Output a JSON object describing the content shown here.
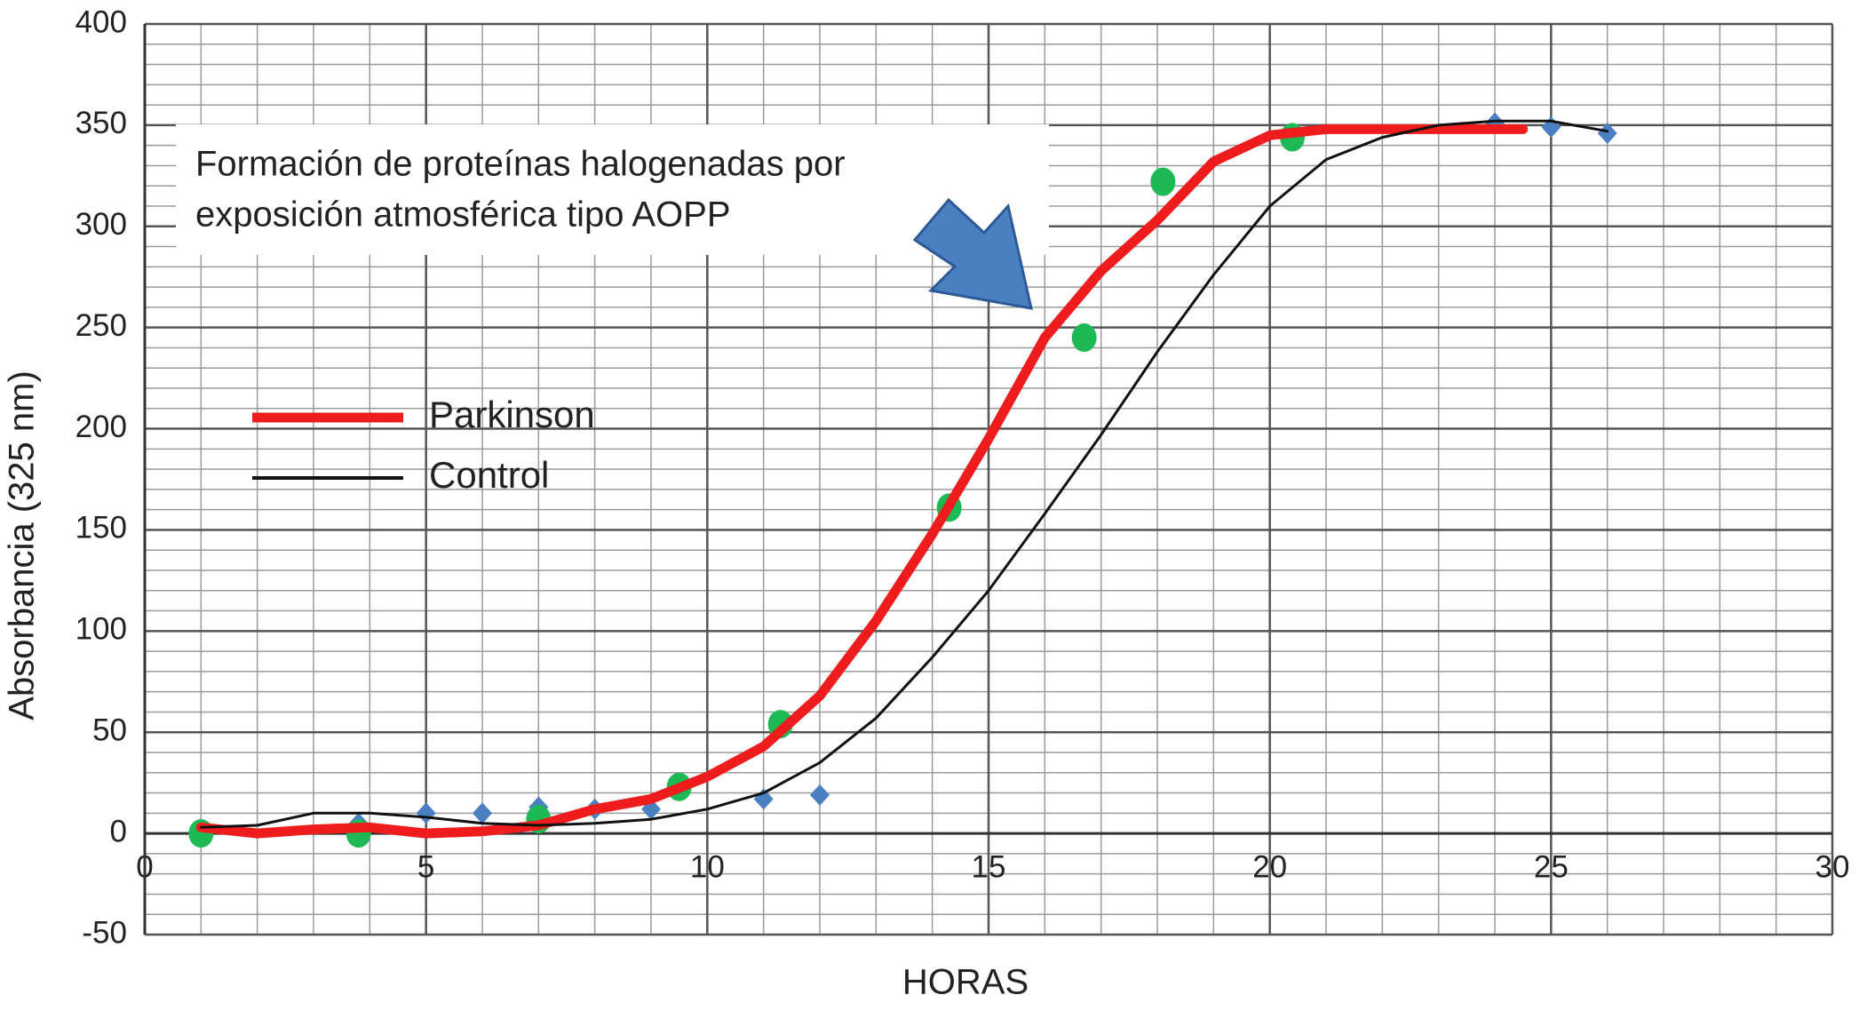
{
  "chart_data": {
    "type": "line",
    "x_label": "HORAS",
    "y_label": "Absorbancia (325 nm)",
    "annotation": [
      "Formación de proteínas halogenadas por",
      " exposición atmosférica tipo AOPP"
    ],
    "xlim": [
      0,
      30
    ],
    "xticks": [
      0,
      5,
      10,
      15,
      20,
      25,
      30
    ],
    "ylim": [
      -50,
      400
    ],
    "yticks": [
      -50,
      0,
      50,
      100,
      150,
      200,
      250,
      300,
      350,
      400
    ],
    "grid": true,
    "legend": "center-left",
    "series": [
      {
        "name": "Parkinson",
        "color": "#ee1c1c",
        "x": [
          1,
          2,
          3,
          4,
          5,
          6,
          7,
          8,
          9,
          10,
          11,
          12,
          13,
          14,
          15,
          16,
          17,
          18,
          19,
          20,
          21,
          22,
          24.5
        ],
        "values": [
          3,
          0,
          2,
          3,
          0,
          1,
          4,
          12,
          17,
          28,
          43,
          68,
          105,
          148,
          195,
          245,
          278,
          303,
          332,
          345,
          348,
          348,
          348
        ]
      },
      {
        "name": "Control",
        "color": "#111111",
        "x": [
          1,
          2,
          3,
          4,
          5,
          6,
          7,
          8,
          9,
          10,
          11,
          12,
          13,
          14,
          15,
          16,
          17,
          18,
          19,
          20,
          21,
          22,
          23,
          24,
          25,
          26
        ],
        "values": [
          3,
          4,
          10,
          10,
          8,
          5,
          4,
          5,
          7,
          12,
          20,
          35,
          57,
          87,
          120,
          158,
          197,
          238,
          276,
          310,
          333,
          344,
          350,
          352,
          352,
          347
        ]
      }
    ],
    "points": [
      {
        "color": "#4a7fc1",
        "marker": "diamond",
        "x": [
          1,
          3.8,
          5,
          6,
          7,
          8,
          9,
          11,
          12,
          24,
          25,
          26
        ],
        "values": [
          2,
          5,
          10,
          10,
          13,
          12,
          12,
          17,
          19,
          351,
          349,
          346
        ]
      },
      {
        "color": "#1db954",
        "marker": "circle",
        "x": [
          1,
          3.8,
          7,
          9.5,
          11.3,
          14.3,
          16.7,
          18.1,
          20.4
        ],
        "values": [
          0,
          0,
          7,
          23,
          54,
          161,
          245,
          322,
          344
        ]
      }
    ]
  }
}
